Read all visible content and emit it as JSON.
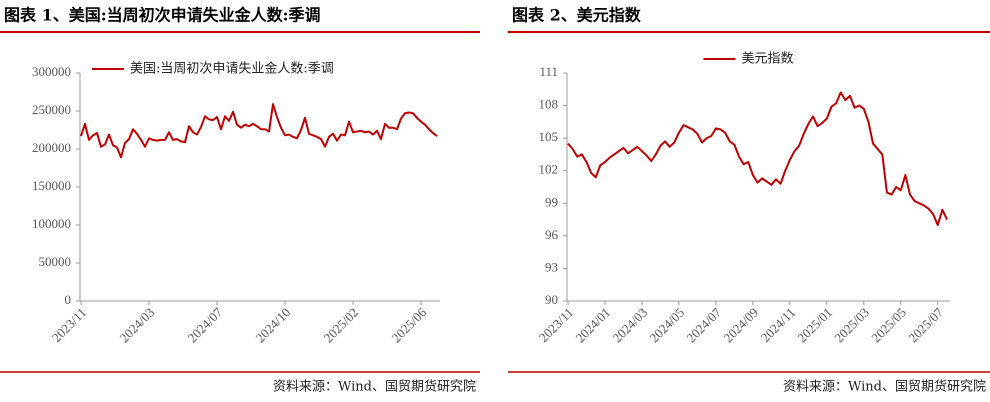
{
  "chart_data": [
    {
      "type": "line",
      "title": "图表 1、美国:当周初次申请失业金人数:季调",
      "source": "资料来源：Wind、国贸期货研究院",
      "categories": [
        "2023/11",
        null,
        null,
        null,
        null,
        null,
        null,
        null,
        null,
        null,
        null,
        null,
        null,
        null,
        null,
        null,
        null,
        "2024/03",
        null,
        null,
        null,
        null,
        null,
        null,
        null,
        null,
        null,
        null,
        null,
        null,
        null,
        null,
        null,
        null,
        "2024/07",
        null,
        null,
        null,
        null,
        null,
        null,
        null,
        null,
        null,
        null,
        null,
        null,
        null,
        null,
        null,
        null,
        "2024/10",
        null,
        null,
        null,
        null,
        null,
        null,
        null,
        null,
        null,
        null,
        null,
        null,
        null,
        null,
        null,
        null,
        "2025/02",
        null,
        null,
        null,
        null,
        null,
        null,
        null,
        null,
        null,
        null,
        null,
        null,
        null,
        null,
        null,
        null,
        "2025/06",
        null,
        null,
        null,
        null
      ],
      "series": [
        {
          "name": "美国:当周初次申请失业金人数:季调",
          "color": "#c00000",
          "values": [
            217000,
            233000,
            212000,
            218000,
            221000,
            203000,
            206000,
            219000,
            205000,
            202000,
            189000,
            208000,
            213000,
            226000,
            220000,
            212000,
            203000,
            214000,
            212000,
            211000,
            212000,
            212000,
            222000,
            212000,
            213000,
            210000,
            209000,
            230000,
            222000,
            219000,
            229000,
            243000,
            239000,
            238000,
            242000,
            226000,
            243000,
            237000,
            249000,
            232000,
            228000,
            232000,
            230000,
            233000,
            230000,
            226000,
            226000,
            223000,
            259000,
            242000,
            228000,
            218000,
            219000,
            216000,
            214000,
            225000,
            241000,
            220000,
            218000,
            216000,
            213000,
            203000,
            216000,
            220000,
            211000,
            219000,
            218000,
            236000,
            222000,
            223000,
            224000,
            222000,
            223000,
            219000,
            224000,
            213000,
            233000,
            228000,
            228000,
            226000,
            240000,
            247000,
            248000,
            247000,
            241000,
            236000,
            232000,
            226000,
            221000,
            217000
          ]
        }
      ],
      "ylim": [
        0,
        300000
      ],
      "yticks": [
        0,
        50000,
        100000,
        150000,
        200000,
        250000,
        300000
      ],
      "legend": "top-left"
    },
    {
      "type": "line",
      "title": "图表 2、美元指数",
      "source": "资料来源：Wind、国贸期货研究院",
      "categories": [
        "2023/11",
        null,
        null,
        null,
        null,
        null,
        null,
        null,
        "2024/01",
        null,
        null,
        null,
        null,
        null,
        null,
        null,
        "2024/03",
        null,
        null,
        null,
        null,
        null,
        null,
        null,
        "2024/05",
        null,
        null,
        null,
        null,
        null,
        null,
        null,
        "2024/07",
        null,
        null,
        null,
        null,
        null,
        null,
        null,
        "2024/09",
        null,
        null,
        null,
        null,
        null,
        null,
        null,
        "2024/11",
        null,
        null,
        null,
        null,
        null,
        null,
        null,
        "2025/01",
        null,
        null,
        null,
        null,
        null,
        null,
        null,
        "2025/03",
        null,
        null,
        null,
        null,
        null,
        null,
        null,
        "2025/05",
        null,
        null,
        null,
        null,
        null,
        null,
        null,
        "2025/07",
        null,
        null
      ],
      "series": [
        {
          "name": "美元指数",
          "color": "#c00000",
          "values": [
            104.5,
            104.0,
            103.3,
            103.5,
            102.8,
            101.8,
            101.4,
            102.5,
            102.8,
            103.2,
            103.5,
            103.8,
            104.1,
            103.6,
            103.9,
            104.2,
            103.8,
            103.4,
            102.9,
            103.5,
            104.3,
            104.7,
            104.2,
            104.6,
            105.5,
            106.2,
            106.0,
            105.8,
            105.4,
            104.6,
            105.0,
            105.2,
            105.9,
            105.8,
            105.5,
            104.7,
            104.4,
            103.3,
            102.6,
            102.8,
            101.6,
            100.9,
            101.3,
            101.0,
            100.7,
            101.2,
            100.8,
            102.0,
            103.0,
            103.8,
            104.3,
            105.4,
            106.3,
            107.0,
            106.1,
            106.4,
            106.8,
            107.9,
            108.2,
            109.2,
            108.5,
            108.9,
            107.8,
            108.0,
            107.7,
            106.5,
            104.5,
            104.0,
            103.5,
            100.0,
            99.8,
            100.5,
            100.2,
            101.6,
            99.8,
            99.2,
            99.0,
            98.8,
            98.5,
            98.0,
            97.0,
            98.4,
            97.5
          ]
        }
      ],
      "ylim": [
        90,
        111
      ],
      "yticks": [
        90,
        93,
        96,
        99,
        102,
        105,
        108,
        111
      ],
      "legend": "top-center"
    }
  ]
}
